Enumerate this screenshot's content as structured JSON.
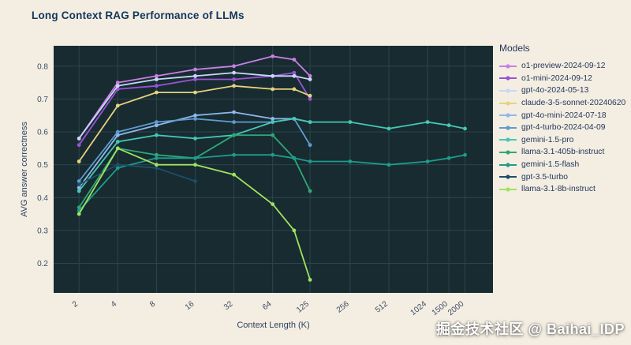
{
  "page": {
    "watermark": "掘金技术社区 @ Baihai_IDP",
    "background": "#f3eee1"
  },
  "chart_data": {
    "type": "line",
    "title": "Long Context RAG Performance of LLMs",
    "xlabel": "Context Length (K)",
    "ylabel": "AVG answer correctness",
    "legend_title": "Models",
    "x_scale": "log",
    "grid": true,
    "legend_position": "right",
    "x_ticks": [
      2,
      4,
      8,
      16,
      32,
      64,
      125,
      256,
      512,
      1024,
      1500,
      2000
    ],
    "y_ticks": [
      0.2,
      0.3,
      0.4,
      0.5,
      0.6,
      0.7,
      0.8
    ],
    "xlim": [
      1.27,
      3300
    ],
    "ylim": [
      0.11,
      0.862
    ],
    "colors": {
      "plot_bg": "#172b31",
      "grid": "#2d464d",
      "title_text": "#13355e",
      "axis_text": "#3c4c68"
    },
    "series": [
      {
        "name": "o1-preview-2024-09-12",
        "color": "#c97ee6",
        "x": [
          2,
          4,
          8,
          16,
          32,
          64,
          94,
          125
        ],
        "y": [
          0.58,
          0.75,
          0.77,
          0.79,
          0.8,
          0.83,
          0.82,
          0.77
        ]
      },
      {
        "name": "o1-mini-2024-09-12",
        "color": "#9a52d6",
        "x": [
          2,
          4,
          8,
          16,
          32,
          64,
          94,
          125
        ],
        "y": [
          0.56,
          0.73,
          0.74,
          0.76,
          0.76,
          0.77,
          0.78,
          0.7
        ]
      },
      {
        "name": "gpt-4o-2024-05-13",
        "color": "#c9d7f5",
        "x": [
          2,
          4,
          8,
          16,
          32,
          64,
          94,
          125
        ],
        "y": [
          0.58,
          0.74,
          0.76,
          0.77,
          0.78,
          0.77,
          0.77,
          0.76
        ]
      },
      {
        "name": "claude-3-5-sonnet-20240620",
        "color": "#e7d27c",
        "x": [
          2,
          4,
          8,
          16,
          32,
          64,
          94,
          125
        ],
        "y": [
          0.51,
          0.68,
          0.72,
          0.72,
          0.74,
          0.73,
          0.73,
          0.71
        ]
      },
      {
        "name": "gpt-4o-mini-2024-07-18",
        "color": "#8fb8ea",
        "x": [
          2,
          4,
          8,
          16,
          32,
          64,
          94,
          125
        ],
        "y": [
          0.43,
          0.59,
          0.62,
          0.65,
          0.66,
          0.64,
          0.64,
          0.63
        ]
      },
      {
        "name": "gpt-4-turbo-2024-04-09",
        "color": "#5e9ccf",
        "x": [
          2,
          4,
          8,
          16,
          32,
          64,
          94,
          125
        ],
        "y": [
          0.45,
          0.6,
          0.63,
          0.64,
          0.63,
          0.63,
          0.64,
          0.56
        ]
      },
      {
        "name": "gemini-1.5-pro",
        "color": "#46c7b4",
        "x": [
          2,
          4,
          8,
          16,
          32,
          64,
          94,
          125,
          256,
          512,
          1024,
          1500,
          2000
        ],
        "y": [
          0.42,
          0.57,
          0.59,
          0.58,
          0.59,
          0.63,
          0.64,
          0.63,
          0.63,
          0.61,
          0.63,
          0.62,
          0.61
        ]
      },
      {
        "name": "llama-3.1-405b-instruct",
        "color": "#2fa877",
        "x": [
          2,
          4,
          8,
          16,
          32,
          64,
          94,
          125
        ],
        "y": [
          0.37,
          0.55,
          0.53,
          0.52,
          0.59,
          0.59,
          0.52,
          0.42
        ]
      },
      {
        "name": "gemini-1.5-flash",
        "color": "#1e9c8b",
        "x": [
          2,
          4,
          8,
          16,
          32,
          64,
          94,
          125,
          256,
          512,
          1024,
          1500,
          2000
        ],
        "y": [
          0.36,
          0.49,
          0.52,
          0.52,
          0.53,
          0.53,
          0.52,
          0.51,
          0.51,
          0.5,
          0.51,
          0.52,
          0.53
        ]
      },
      {
        "name": "gpt-3.5-turbo",
        "color": "#1d4e6b",
        "x": [
          2,
          4,
          8,
          16
        ],
        "y": [
          0.44,
          0.5,
          0.49,
          0.45
        ]
      },
      {
        "name": "llama-3.1-8b-instruct",
        "color": "#a0e35f",
        "x": [
          2,
          4,
          8,
          16,
          32,
          64,
          94,
          125
        ],
        "y": [
          0.35,
          0.55,
          0.5,
          0.5,
          0.47,
          0.38,
          0.3,
          0.15
        ]
      }
    ]
  }
}
